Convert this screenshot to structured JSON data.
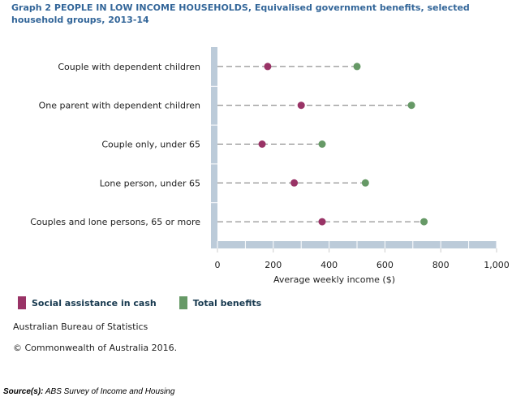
{
  "title": "Graph 2 PEOPLE IN LOW INCOME HOUSEHOLDS, Equivalised government benefits, selected household groups, 2013-14",
  "chart_data": {
    "type": "dot",
    "orientation": "horizontal",
    "categories": [
      "Couple with dependent children",
      "One parent with dependent children",
      "Couple only, under 65",
      "Lone person, under 65",
      "Couples and lone persons, 65 or more"
    ],
    "series": [
      {
        "name": "Social assistance in cash",
        "color": "#993366",
        "values": [
          180,
          300,
          160,
          275,
          375
        ]
      },
      {
        "name": "Total benefits",
        "color": "#669966",
        "values": [
          500,
          695,
          375,
          530,
          740
        ]
      }
    ],
    "xlabel": "Average weekly income ($)",
    "xlim": [
      0,
      1000
    ],
    "xticks": [
      "0",
      "200",
      "400",
      "600",
      "800",
      "1,000"
    ],
    "legend": "bottom-left"
  },
  "footer": {
    "org": "Australian Bureau of Statistics",
    "copyright": "© Commonwealth of Australia 2016.",
    "source_label": "Source(s):",
    "source_text": " ABS Survey of Income and Housing"
  }
}
